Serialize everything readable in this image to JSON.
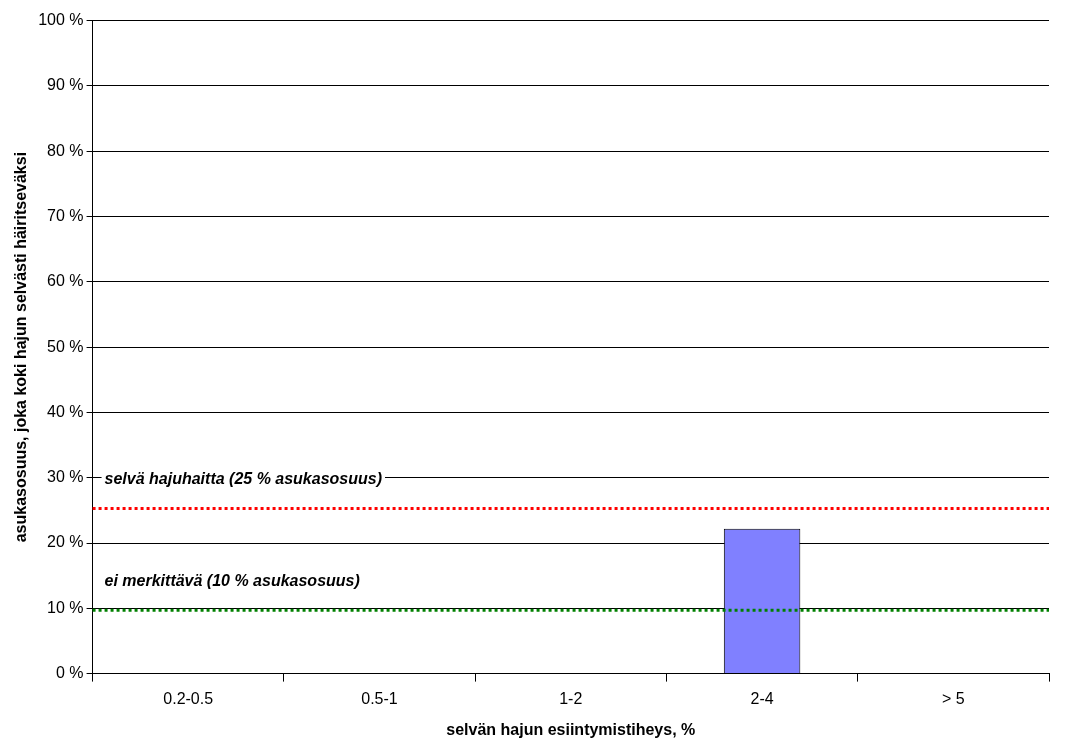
{
  "chart_data": {
    "type": "bar",
    "xlabel": "selvän hajun esiintymistiheys, %",
    "ylabel": "asukasosuus, joka koki hajun selvästi häiritseväksi",
    "categories": [
      "0.2-0.5",
      "0.5-1",
      "1-2",
      "2-4",
      "> 5"
    ],
    "series": [
      {
        "color": "#8080ff",
        "values": [
          null,
          null,
          null,
          22.2,
          null
        ]
      }
    ],
    "ylim": [
      0,
      100
    ],
    "yticks": [
      {
        "value": 0,
        "label": "0 %"
      },
      {
        "value": 10,
        "label": "10 %"
      },
      {
        "value": 20,
        "label": "20 %"
      },
      {
        "value": 30,
        "label": "30 %"
      },
      {
        "value": 40,
        "label": "40 %"
      },
      {
        "value": 50,
        "label": "50 %"
      },
      {
        "value": 60,
        "label": "60 %"
      },
      {
        "value": 70,
        "label": "70 %"
      },
      {
        "value": 80,
        "label": "80 %"
      },
      {
        "value": 90,
        "label": "90 %"
      },
      {
        "value": 100,
        "label": "100 %"
      }
    ],
    "grid": "y",
    "legend": false,
    "ref_lines": [
      {
        "axis": "y",
        "value": 25.3,
        "label": "selvä hajuhaitta (25 % asukasosuus)",
        "color": "#ff0000",
        "line_style": "dotted"
      },
      {
        "axis": "y",
        "value": 9.7,
        "label": "ei merkittävä (10 % asukasosuus)",
        "color": "#008000",
        "line_style": "dotted"
      }
    ]
  }
}
